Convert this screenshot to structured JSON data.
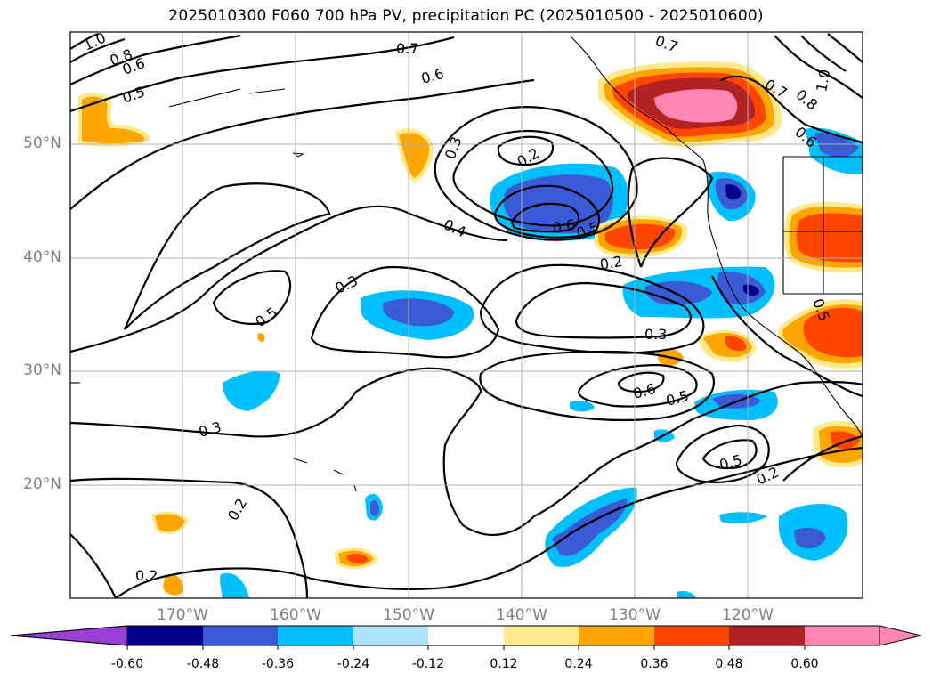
{
  "title": "2025010300 F060 700 hPa PV, precipitation PC (2025010500 - 2025010600)",
  "map": {
    "lat_labels": [
      "50°N",
      "40°N",
      "30°N",
      "20°N"
    ],
    "lon_labels": [
      "170°W",
      "160°W",
      "150°W",
      "140°W",
      "130°W",
      "120°W"
    ],
    "contour_labels": [
      "1.0",
      "0.8",
      "0.6",
      "0.5",
      "0.7",
      "0.6",
      "0.3",
      "0.2",
      "0.4",
      "0.5",
      "0.6",
      "0.2",
      "0.3",
      "0.5",
      "0.3",
      "0.6",
      "0.5",
      "0.3",
      "0.2",
      "0.5",
      "0.2",
      "0.2",
      "0.7",
      "0.7",
      "0.8",
      "0.6",
      "1.0",
      "0.5"
    ]
  },
  "colorbar": {
    "ticks": [
      "-0.60",
      "-0.48",
      "-0.36",
      "-0.24",
      "-0.12",
      "0.12",
      "0.24",
      "0.36",
      "0.48",
      "0.60"
    ],
    "colors": [
      "#9a3fd6",
      "#00008b",
      "#3a5ad6",
      "#00bfff",
      "#aee2fb",
      "#ffffff",
      "#ffe98a",
      "#ffa500",
      "#ff4500",
      "#b22222",
      "#ff85b2",
      "#ff85b2"
    ]
  }
}
